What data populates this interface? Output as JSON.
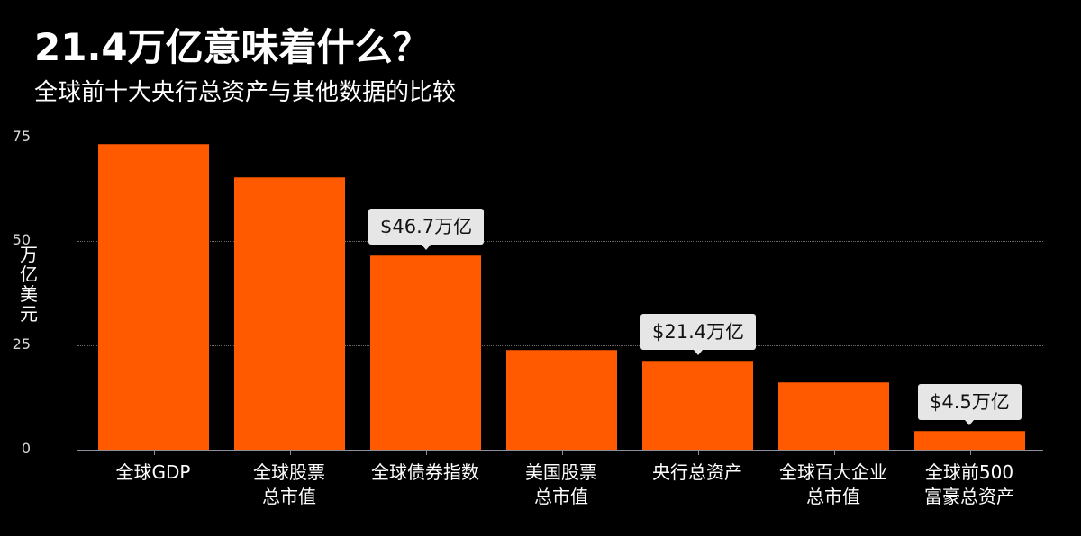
{
  "header": {
    "title": "21.4万亿意味着什么？",
    "subtitle": "全球前十大央行总资产与其他数据的比较"
  },
  "chart_data": {
    "type": "bar",
    "title": "21.4万亿意味着什么？",
    "subtitle": "全球前十大央行总资产与其他数据的比较",
    "xlabel": "",
    "ylabel": "万亿美元",
    "ylim": [
      0,
      75
    ],
    "yticks": [
      0,
      25,
      50,
      75
    ],
    "grid": true,
    "legend": null,
    "bar_color": "#ff5a00",
    "categories": [
      "全球GDP",
      "全球股票总市值",
      "全球债券指数",
      "美国股票总市值",
      "央行总资产",
      "全球百大企业总市值",
      "全球前500富豪总资产"
    ],
    "category_lines": [
      [
        "全球GDP"
      ],
      [
        "全球股票",
        "总市值"
      ],
      [
        "全球债券指数"
      ],
      [
        "美国股票",
        "总市值"
      ],
      [
        "央行总资产"
      ],
      [
        "全球百大企业",
        "总市值"
      ],
      [
        "全球前500",
        "富豪总资产"
      ]
    ],
    "values": [
      73.5,
      65.5,
      46.7,
      24.0,
      21.4,
      16.2,
      4.5
    ],
    "annotations": [
      {
        "index": 2,
        "text": "$46.7万亿"
      },
      {
        "index": 4,
        "text": "$21.4万亿"
      },
      {
        "index": 6,
        "text": "$4.5万亿"
      }
    ]
  },
  "y_axis": {
    "label_chars": [
      "万",
      "亿",
      "美",
      "元"
    ],
    "ticks": [
      "75",
      "50",
      "25",
      "0"
    ]
  },
  "labels": {
    "c0": [
      "全球GDP",
      ""
    ],
    "c1": [
      "全球股票",
      "总市值"
    ],
    "c2": [
      "全球债券指数",
      ""
    ],
    "c3": [
      "美国股票",
      "总市值"
    ],
    "c4": [
      "央行总资产",
      ""
    ],
    "c5": [
      "全球百大企业",
      "总市值"
    ],
    "c6": [
      "全球前500",
      "富豪总资产"
    ]
  },
  "callouts": {
    "a2": "$46.7万亿",
    "a4": "$21.4万亿",
    "a6": "$4.5万亿"
  }
}
